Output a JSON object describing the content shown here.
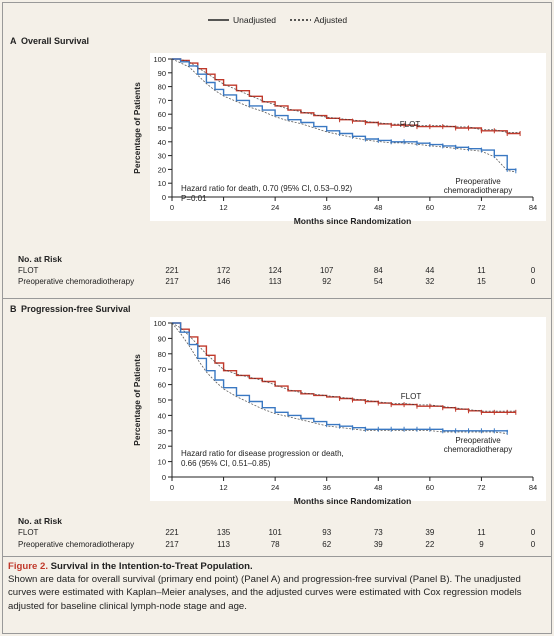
{
  "legend": {
    "unadjusted": "Unadjusted",
    "adjusted": "Adjusted"
  },
  "colors": {
    "flot": "#c0392b",
    "preop": "#3a78c2",
    "panel_bg": "#ffffff",
    "frame": "#999999"
  },
  "chart_data": [
    {
      "type": "line",
      "panel_label": "A",
      "title": "Overall Survival",
      "xlabel": "Months since Randomization",
      "ylabel": "Percentage of Patients",
      "xlim": [
        0,
        84
      ],
      "ylim": [
        0,
        100
      ],
      "xticks": [
        0,
        12,
        24,
        36,
        48,
        60,
        72,
        84
      ],
      "yticks": [
        0,
        10,
        20,
        30,
        40,
        50,
        60,
        70,
        80,
        90,
        100
      ],
      "annotation": [
        "Hazard ratio for death, 0.70 (95% CI, 0.53–0.92)",
        "P=0.01"
      ],
      "series": [
        {
          "name": "FLOT",
          "label": [
            "FLOT"
          ],
          "x": [
            0,
            2,
            4,
            6,
            8,
            10,
            12,
            15,
            18,
            21,
            24,
            27,
            30,
            33,
            36,
            39,
            42,
            45,
            48,
            51,
            54,
            57,
            60,
            63,
            66,
            69,
            72,
            75,
            78,
            81
          ],
          "y": [
            100,
            99,
            97,
            93,
            89,
            85,
            81,
            77,
            73,
            69,
            66,
            63,
            61,
            59,
            57,
            56,
            55,
            54,
            53,
            52,
            52,
            51,
            51,
            51,
            50,
            50,
            48,
            48,
            46,
            46
          ]
        },
        {
          "name": "Preoperative chemoradiotherapy",
          "label": [
            "Preoperative",
            "chemoradiotherapy"
          ],
          "x": [
            0,
            2,
            4,
            6,
            8,
            10,
            12,
            15,
            18,
            21,
            24,
            27,
            30,
            33,
            36,
            39,
            42,
            45,
            48,
            51,
            54,
            57,
            60,
            63,
            66,
            69,
            72,
            75,
            78,
            80
          ],
          "y": [
            100,
            98,
            95,
            89,
            83,
            78,
            74,
            70,
            66,
            63,
            59,
            56,
            54,
            51,
            48,
            46,
            44,
            42,
            41,
            40,
            40,
            39,
            38,
            37,
            36,
            35,
            34,
            30,
            20,
            19
          ]
        }
      ],
      "risk": {
        "title": "No. at Risk",
        "times": [
          0,
          12,
          24,
          36,
          48,
          60,
          72,
          84
        ],
        "rows": [
          {
            "name": "FLOT",
            "values": [
              "221",
              "172",
              "124",
              "107",
              "84",
              "44",
              "11",
              "0"
            ]
          },
          {
            "name": "Preoperative chemoradiotherapy",
            "values": [
              "217",
              "146",
              "113",
              "92",
              "54",
              "32",
              "15",
              "0"
            ]
          }
        ]
      }
    },
    {
      "type": "line",
      "panel_label": "B",
      "title": "Progression-free Survival",
      "xlabel": "Months since Randomization",
      "ylabel": "Percentage of Patients",
      "xlim": [
        0,
        84
      ],
      "ylim": [
        0,
        100
      ],
      "xticks": [
        0,
        12,
        24,
        36,
        48,
        60,
        72,
        84
      ],
      "yticks": [
        0,
        10,
        20,
        30,
        40,
        50,
        60,
        70,
        80,
        90,
        100
      ],
      "annotation": [
        "Hazard ratio for disease progression or death,",
        "0.66 (95% CI, 0.51–0.85)"
      ],
      "series": [
        {
          "name": "FLOT",
          "label": [
            "FLOT"
          ],
          "x": [
            0,
            2,
            4,
            6,
            8,
            10,
            12,
            15,
            18,
            21,
            24,
            27,
            30,
            33,
            36,
            39,
            42,
            45,
            48,
            51,
            54,
            57,
            60,
            63,
            66,
            69,
            72,
            75,
            78,
            80
          ],
          "y": [
            100,
            96,
            91,
            85,
            79,
            74,
            69,
            66,
            64,
            62,
            59,
            56,
            54,
            53,
            52,
            51,
            50,
            49,
            48,
            47,
            47,
            46,
            46,
            45,
            44,
            43,
            42,
            42,
            42,
            42
          ]
        },
        {
          "name": "Preoperative chemoradiotherapy",
          "label": [
            "Preoperative",
            "chemoradiotherapy"
          ],
          "x": [
            0,
            2,
            4,
            6,
            8,
            10,
            12,
            15,
            18,
            21,
            24,
            27,
            30,
            33,
            36,
            39,
            42,
            45,
            48,
            51,
            54,
            57,
            60,
            63,
            66,
            69,
            72,
            75,
            78
          ],
          "y": [
            100,
            94,
            86,
            77,
            69,
            63,
            58,
            53,
            49,
            45,
            42,
            40,
            38,
            36,
            34,
            33,
            32,
            31,
            31,
            31,
            31,
            31,
            31,
            30,
            30,
            30,
            30,
            30,
            29
          ]
        }
      ],
      "risk": {
        "title": "No. at Risk",
        "times": [
          0,
          12,
          24,
          36,
          48,
          60,
          72,
          84
        ],
        "rows": [
          {
            "name": "FLOT",
            "values": [
              "221",
              "135",
              "101",
              "93",
              "73",
              "39",
              "11",
              "0"
            ]
          },
          {
            "name": "Preoperative chemoradiotherapy",
            "values": [
              "217",
              "113",
              "78",
              "62",
              "39",
              "22",
              "9",
              "0"
            ]
          }
        ]
      }
    }
  ],
  "caption": {
    "label": "Figure 2.",
    "title": "Survival in the Intention-to-Treat Population.",
    "body": "Shown are data for overall survival (primary end point) (Panel A) and progression-free survival (Panel B). The unadjusted curves were estimated with Kaplan–Meier analyses, and the adjusted curves were estimated with Cox regression models adjusted for baseline clinical lymph-node stage and age."
  }
}
